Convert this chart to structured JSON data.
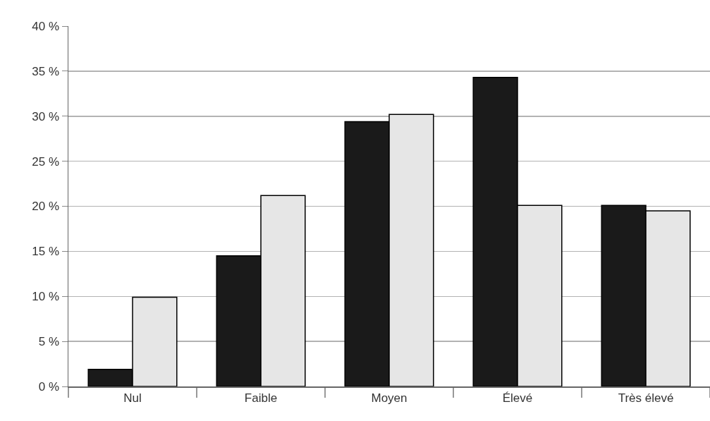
{
  "chart_data": {
    "type": "bar",
    "categories": [
      "Nul",
      "Faible",
      "Moyen",
      "Élevé",
      "Très élevé"
    ],
    "series": [
      {
        "color": "#1a1a1a",
        "values": [
          1.9,
          14.5,
          29.4,
          34.3,
          20.1
        ]
      },
      {
        "color": "#e6e6e6",
        "values": [
          9.9,
          21.2,
          30.2,
          20.1,
          19.5
        ]
      }
    ],
    "ylim": [
      0,
      40
    ],
    "yticks": [
      {
        "value": 0,
        "label": "0 %"
      },
      {
        "value": 5,
        "label": "5 %"
      },
      {
        "value": 10,
        "label": "10 %"
      },
      {
        "value": 15,
        "label": "15 %"
      },
      {
        "value": 20,
        "label": "20 %"
      },
      {
        "value": 25,
        "label": "25 %"
      },
      {
        "value": 30,
        "label": "30 %"
      },
      {
        "value": 35,
        "label": "35 %"
      },
      {
        "value": 40,
        "label": "40 %"
      }
    ],
    "grid": "y"
  }
}
